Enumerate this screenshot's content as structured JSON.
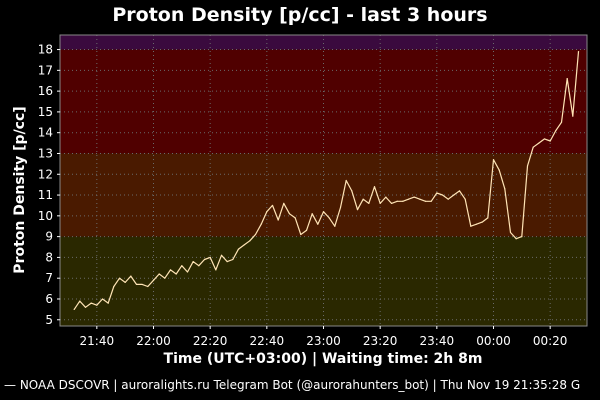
{
  "chart_data": {
    "type": "line",
    "title": "Proton Density [p/cc] - last 3 hours",
    "xlabel": "Time (UTC+03:00) | Waiting time: 2h 8m",
    "ylabel": "Proton Density [p/cc]",
    "xlim": [
      "21:27",
      "00:33"
    ],
    "ylim": [
      4.7,
      18.7
    ],
    "x_ticks": [
      "21:40",
      "22:00",
      "22:20",
      "22:40",
      "23:00",
      "23:20",
      "23:40",
      "00:00",
      "00:20"
    ],
    "y_ticks": [
      5,
      6,
      7,
      8,
      9,
      10,
      11,
      12,
      13,
      14,
      15,
      16,
      17,
      18
    ],
    "grid": true,
    "bands": [
      {
        "from": 4.7,
        "to": 9,
        "color": "#2a2800"
      },
      {
        "from": 9,
        "to": 13,
        "color": "#4a1a00"
      },
      {
        "from": 13,
        "to": 18,
        "color": "#500000"
      },
      {
        "from": 18,
        "to": 18.7,
        "color": "#3a0a3e"
      }
    ],
    "line_color": "#ffe4b5",
    "series": [
      {
        "x": [
          "21:32",
          "21:34",
          "21:36",
          "21:38",
          "21:40",
          "21:42",
          "21:44",
          "21:46",
          "21:48",
          "21:50",
          "21:52",
          "21:54",
          "21:56",
          "21:58",
          "22:00",
          "22:02",
          "22:04",
          "22:06",
          "22:08",
          "22:10",
          "22:12",
          "22:14",
          "22:16",
          "22:18",
          "22:20",
          "22:22",
          "22:24",
          "22:26",
          "22:28",
          "22:30",
          "22:32",
          "22:34",
          "22:36",
          "22:38",
          "22:40",
          "22:42",
          "22:44",
          "22:46",
          "22:48",
          "22:50",
          "22:52",
          "22:54",
          "22:56",
          "22:58",
          "23:00",
          "23:02",
          "23:04",
          "23:06",
          "23:08",
          "23:10",
          "23:12",
          "23:14",
          "23:16",
          "23:18",
          "23:20",
          "23:22",
          "23:24",
          "23:26",
          "23:28",
          "23:30",
          "23:32",
          "23:34",
          "23:36",
          "23:38",
          "23:40",
          "23:42",
          "23:44",
          "23:46",
          "23:48",
          "23:50",
          "23:52",
          "23:54",
          "23:56",
          "23:58",
          "00:00",
          "00:02",
          "00:04",
          "00:06",
          "00:08",
          "00:10",
          "00:12",
          "00:14",
          "00:16",
          "00:18",
          "00:20",
          "00:22",
          "00:24",
          "00:26",
          "00:28",
          "00:30"
        ],
        "values": [
          5.5,
          5.9,
          5.6,
          5.8,
          5.7,
          6.0,
          5.8,
          6.6,
          7.0,
          6.8,
          7.1,
          6.7,
          6.7,
          6.6,
          6.9,
          7.2,
          7.0,
          7.4,
          7.2,
          7.6,
          7.3,
          7.8,
          7.6,
          7.9,
          8.0,
          7.4,
          8.1,
          7.8,
          7.9,
          8.4,
          8.6,
          8.8,
          9.1,
          9.6,
          10.2,
          10.5,
          9.8,
          10.6,
          10.1,
          9.9,
          9.1,
          9.3,
          10.1,
          9.6,
          10.2,
          9.9,
          9.5,
          10.4,
          11.7,
          11.2,
          10.3,
          10.8,
          10.6,
          11.4,
          10.6,
          10.9,
          10.6,
          10.7,
          10.7,
          10.8,
          10.9,
          10.8,
          10.7,
          10.7,
          11.1,
          11.0,
          10.8,
          11.0,
          11.2,
          10.8,
          9.5,
          9.6,
          9.7,
          9.9,
          12.7,
          12.2,
          11.3,
          9.2,
          8.9,
          9.0,
          12.4,
          13.3,
          13.5,
          13.7,
          13.6,
          14.1,
          14.5,
          16.6,
          14.8,
          17.9
        ]
      }
    ]
  },
  "footer": "— NOAA DSCOVR | auroralights.ru Telegram Bot (@aurorahunters_bot) | Thu Nov 19 21:35:28 G"
}
